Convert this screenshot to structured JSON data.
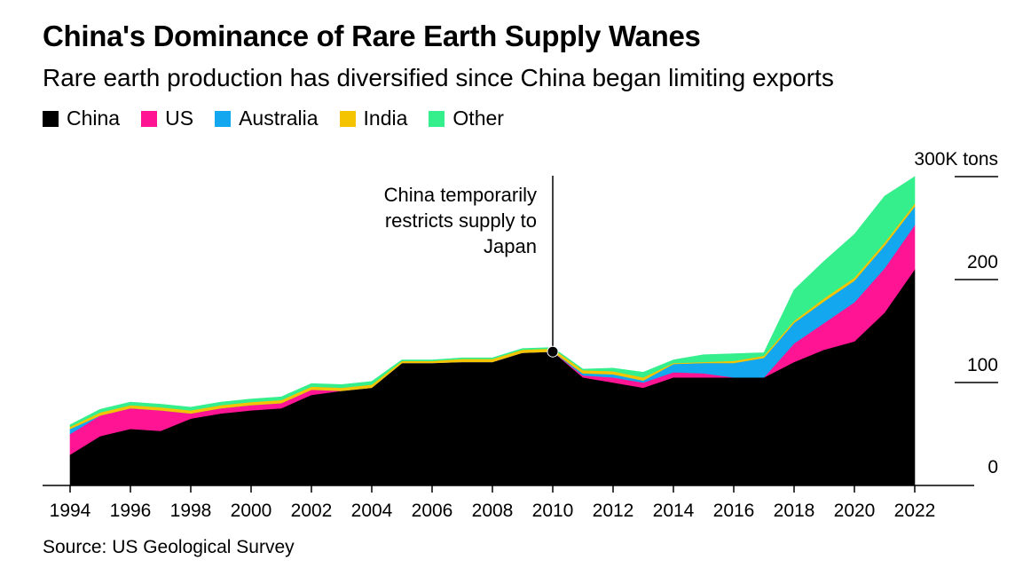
{
  "title": "China's Dominance of Rare Earth Supply Wanes",
  "subtitle": "Rare earth production has diversified since China began limiting exports",
  "source": "Source: US Geological Survey",
  "legend": [
    {
      "name": "China",
      "color": "#000000"
    },
    {
      "name": "US",
      "color": "#ff1493"
    },
    {
      "name": "Australia",
      "color": "#12a7ee"
    },
    {
      "name": "India",
      "color": "#f5c400"
    },
    {
      "name": "Other",
      "color": "#35ee8c"
    }
  ],
  "chart_data": {
    "type": "area",
    "stacked": true,
    "x": [
      1994,
      1995,
      1996,
      1997,
      1998,
      1999,
      2000,
      2001,
      2002,
      2003,
      2004,
      2005,
      2006,
      2007,
      2008,
      2009,
      2010,
      2011,
      2012,
      2013,
      2014,
      2015,
      2016,
      2017,
      2018,
      2019,
      2020,
      2021,
      2022
    ],
    "series": [
      {
        "name": "China",
        "color": "#000000",
        "values": [
          30,
          48,
          55,
          53,
          65,
          70,
          73,
          75,
          88,
          92,
          95,
          119,
          119,
          120,
          120,
          129,
          130,
          105,
          100,
          95,
          105,
          105,
          105,
          105,
          120,
          132,
          140,
          168,
          210
        ]
      },
      {
        "name": "US",
        "color": "#ff1493",
        "values": [
          20,
          20,
          20,
          20,
          5,
          5,
          5,
          5,
          5,
          0,
          0,
          0,
          0,
          0,
          0,
          0,
          0,
          2,
          5,
          5,
          5,
          4,
          0,
          0,
          18,
          26,
          38,
          43,
          43
        ]
      },
      {
        "name": "Australia",
        "color": "#12a7ee",
        "values": [
          5,
          0,
          0,
          0,
          0,
          0,
          0,
          0,
          0,
          0,
          0,
          0,
          0,
          0,
          0,
          0,
          0,
          2,
          3,
          2,
          8,
          10,
          14,
          19,
          20,
          21,
          21,
          22,
          18
        ]
      },
      {
        "name": "India",
        "color": "#f5c400",
        "values": [
          2,
          3,
          3,
          3,
          3,
          3,
          3,
          3,
          3,
          3,
          3,
          2,
          2,
          3,
          3,
          3,
          3,
          3,
          3,
          3,
          1,
          1,
          2,
          2,
          2,
          3,
          3,
          3,
          3
        ]
      },
      {
        "name": "Other",
        "color": "#35ee8c",
        "values": [
          2,
          3,
          3,
          3,
          3,
          3,
          3,
          3,
          3,
          3,
          3,
          1,
          1,
          1,
          1,
          1,
          1,
          1,
          3,
          5,
          3,
          7,
          7,
          3,
          30,
          36,
          42,
          45,
          26
        ]
      }
    ],
    "ylim": [
      0,
      300
    ],
    "yticks": [
      0,
      100,
      200,
      300
    ],
    "ytick_labels": [
      "0",
      "100",
      "200",
      "300K tons"
    ],
    "xticks": [
      1994,
      1996,
      1998,
      2000,
      2002,
      2004,
      2006,
      2008,
      2010,
      2012,
      2014,
      2016,
      2018,
      2020,
      2022
    ],
    "annotation": {
      "year": 2010,
      "value": 130,
      "lines": [
        "China temporarily",
        "restricts supply to",
        "Japan"
      ]
    }
  }
}
